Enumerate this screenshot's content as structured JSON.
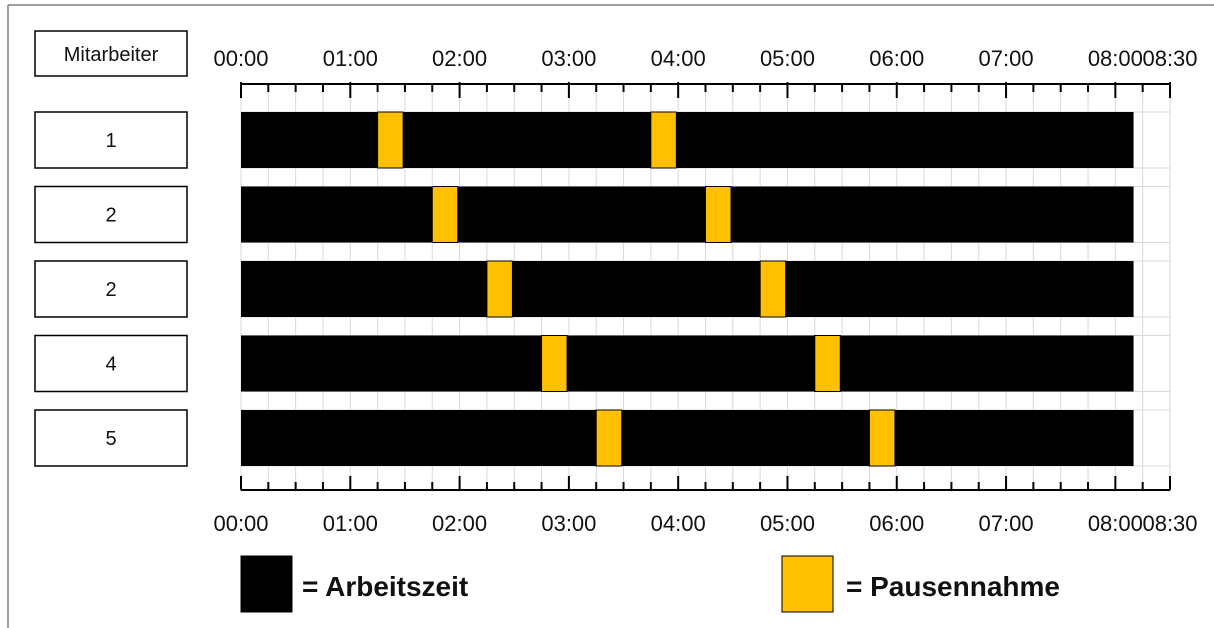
{
  "chart_data": {
    "type": "gantt",
    "header_label": "Mitarbeiter",
    "x_unit": "minutes",
    "x_range": [
      0,
      510
    ],
    "ticks": [
      {
        "value": 0,
        "label": "00:00"
      },
      {
        "value": 60,
        "label": "01:00"
      },
      {
        "value": 120,
        "label": "02:00"
      },
      {
        "value": 180,
        "label": "03:00"
      },
      {
        "value": 240,
        "label": "04:00"
      },
      {
        "value": 300,
        "label": "05:00"
      },
      {
        "value": 360,
        "label": "06:00"
      },
      {
        "value": 420,
        "label": "07:00"
      },
      {
        "value": 480,
        "label": "08:00"
      },
      {
        "value": 510,
        "label": "08:30"
      }
    ],
    "minor_tick_step": 15,
    "grid": true,
    "rows": [
      {
        "label": "1",
        "work": [
          0,
          490
        ],
        "breaks": [
          [
            75,
            89
          ],
          [
            225,
            239
          ]
        ]
      },
      {
        "label": "2",
        "work": [
          0,
          490
        ],
        "breaks": [
          [
            105,
            119
          ],
          [
            255,
            269
          ]
        ]
      },
      {
        "label": "2",
        "work": [
          0,
          490
        ],
        "breaks": [
          [
            135,
            149
          ],
          [
            285,
            299
          ]
        ]
      },
      {
        "label": "4",
        "work": [
          0,
          490
        ],
        "breaks": [
          [
            165,
            179
          ],
          [
            315,
            329
          ]
        ]
      },
      {
        "label": "5",
        "work": [
          0,
          490
        ],
        "breaks": [
          [
            195,
            209
          ],
          [
            345,
            359
          ]
        ]
      }
    ],
    "legend": [
      {
        "label": "= Arbeitszeit",
        "color": "#000000"
      },
      {
        "label": "= Pausennahme",
        "color": "#FFC000"
      }
    ],
    "colors": {
      "work": "#000000",
      "break": "#FFC000",
      "grid": "#d9d9d9",
      "frame": "#7f7f7f"
    }
  }
}
